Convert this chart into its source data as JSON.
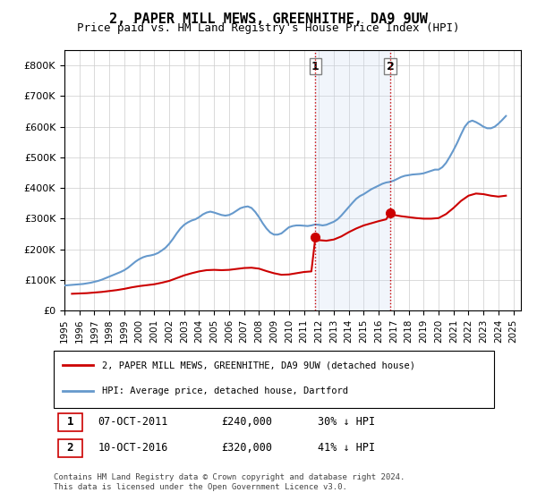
{
  "title": "2, PAPER MILL MEWS, GREENHITHE, DA9 9UW",
  "subtitle": "Price paid vs. HM Land Registry's House Price Index (HPI)",
  "ylabel_ticks": [
    "£0",
    "£100K",
    "£200K",
    "£300K",
    "£400K",
    "£500K",
    "£600K",
    "£700K",
    "£800K"
  ],
  "ytick_values": [
    0,
    100000,
    200000,
    300000,
    400000,
    500000,
    600000,
    700000,
    800000
  ],
  "ylim": [
    0,
    850000
  ],
  "xlim_start": 1995.0,
  "xlim_end": 2025.5,
  "transaction1": {
    "date_x": 2011.77,
    "price": 240000,
    "label": "1"
  },
  "transaction2": {
    "date_x": 2016.77,
    "price": 320000,
    "label": "2"
  },
  "shade_color": "#c8d8f0",
  "vline_color": "#cc0000",
  "legend_label_red": "2, PAPER MILL MEWS, GREENHITHE, DA9 9UW (detached house)",
  "legend_label_blue": "HPI: Average price, detached house, Dartford",
  "table_row1": "1    07-OCT-2011         £240,000         30% ↓ HPI",
  "table_row2": "2    10-OCT-2016         £320,000         41% ↓ HPI",
  "footer": "Contains HM Land Registry data © Crown copyright and database right 2024.\nThis data is licensed under the Open Government Licence v3.0.",
  "hpi_color": "#6699cc",
  "sale_color": "#cc0000",
  "hpi_data_x": [
    1995.0,
    1995.25,
    1995.5,
    1995.75,
    1996.0,
    1996.25,
    1996.5,
    1996.75,
    1997.0,
    1997.25,
    1997.5,
    1997.75,
    1998.0,
    1998.25,
    1998.5,
    1998.75,
    1999.0,
    1999.25,
    1999.5,
    1999.75,
    2000.0,
    2000.25,
    2000.5,
    2000.75,
    2001.0,
    2001.25,
    2001.5,
    2001.75,
    2002.0,
    2002.25,
    2002.5,
    2002.75,
    2003.0,
    2003.25,
    2003.5,
    2003.75,
    2004.0,
    2004.25,
    2004.5,
    2004.75,
    2005.0,
    2005.25,
    2005.5,
    2005.75,
    2006.0,
    2006.25,
    2006.5,
    2006.75,
    2007.0,
    2007.25,
    2007.5,
    2007.75,
    2008.0,
    2008.25,
    2008.5,
    2008.75,
    2009.0,
    2009.25,
    2009.5,
    2009.75,
    2010.0,
    2010.25,
    2010.5,
    2010.75,
    2011.0,
    2011.25,
    2011.5,
    2011.75,
    2012.0,
    2012.25,
    2012.5,
    2012.75,
    2013.0,
    2013.25,
    2013.5,
    2013.75,
    2014.0,
    2014.25,
    2014.5,
    2014.75,
    2015.0,
    2015.25,
    2015.5,
    2015.75,
    2016.0,
    2016.25,
    2016.5,
    2016.75,
    2017.0,
    2017.25,
    2017.5,
    2017.75,
    2018.0,
    2018.25,
    2018.5,
    2018.75,
    2019.0,
    2019.25,
    2019.5,
    2019.75,
    2020.0,
    2020.25,
    2020.5,
    2020.75,
    2021.0,
    2021.25,
    2021.5,
    2021.75,
    2022.0,
    2022.25,
    2022.5,
    2022.75,
    2023.0,
    2023.25,
    2023.5,
    2023.75,
    2024.0,
    2024.25,
    2024.5
  ],
  "hpi_data_y": [
    82000,
    83000,
    84000,
    85000,
    86000,
    87000,
    89000,
    91000,
    94000,
    97000,
    101000,
    106000,
    111000,
    116000,
    121000,
    126000,
    132000,
    140000,
    150000,
    160000,
    168000,
    174000,
    178000,
    180000,
    183000,
    188000,
    196000,
    205000,
    218000,
    234000,
    252000,
    268000,
    280000,
    288000,
    294000,
    298000,
    305000,
    314000,
    320000,
    323000,
    320000,
    316000,
    312000,
    310000,
    312000,
    318000,
    326000,
    334000,
    338000,
    340000,
    335000,
    322000,
    305000,
    285000,
    268000,
    255000,
    248000,
    248000,
    252000,
    262000,
    272000,
    276000,
    278000,
    278000,
    277000,
    276000,
    278000,
    281000,
    280000,
    278000,
    280000,
    285000,
    290000,
    298000,
    310000,
    324000,
    338000,
    352000,
    365000,
    374000,
    380000,
    388000,
    396000,
    402000,
    408000,
    414000,
    418000,
    420000,
    424000,
    430000,
    436000,
    440000,
    442000,
    444000,
    445000,
    446000,
    448000,
    452000,
    456000,
    460000,
    460000,
    468000,
    482000,
    502000,
    524000,
    548000,
    575000,
    600000,
    615000,
    620000,
    615000,
    608000,
    600000,
    595000,
    595000,
    600000,
    610000,
    622000,
    635000
  ],
  "sale_data_x": [
    1995.5,
    1996.0,
    1996.5,
    1997.0,
    1997.5,
    1998.0,
    1998.5,
    1999.0,
    1999.5,
    2000.0,
    2000.5,
    2001.0,
    2001.5,
    2002.0,
    2002.5,
    2003.0,
    2003.5,
    2004.0,
    2004.5,
    2005.0,
    2005.5,
    2006.0,
    2006.5,
    2007.0,
    2007.5,
    2008.0,
    2008.5,
    2009.0,
    2009.5,
    2010.0,
    2010.5,
    2011.0,
    2011.5,
    2011.77,
    2012.0,
    2012.5,
    2013.0,
    2013.5,
    2014.0,
    2014.5,
    2015.0,
    2015.5,
    2016.0,
    2016.5,
    2016.77,
    2017.0,
    2017.5,
    2018.0,
    2018.5,
    2019.0,
    2019.5,
    2020.0,
    2020.5,
    2021.0,
    2021.5,
    2022.0,
    2022.5,
    2023.0,
    2023.5,
    2024.0,
    2024.5
  ],
  "sale_data_y": [
    55000,
    56000,
    57000,
    59000,
    61000,
    64000,
    67000,
    71000,
    76000,
    80000,
    83000,
    86000,
    91000,
    97000,
    106000,
    115000,
    122000,
    128000,
    132000,
    133000,
    132000,
    133000,
    136000,
    139000,
    140000,
    137000,
    129000,
    122000,
    117000,
    118000,
    122000,
    126000,
    128000,
    240000,
    230000,
    228000,
    232000,
    242000,
    256000,
    268000,
    278000,
    285000,
    292000,
    298000,
    320000,
    312000,
    308000,
    305000,
    302000,
    300000,
    300000,
    302000,
    315000,
    335000,
    358000,
    375000,
    382000,
    380000,
    375000,
    372000,
    375000
  ]
}
